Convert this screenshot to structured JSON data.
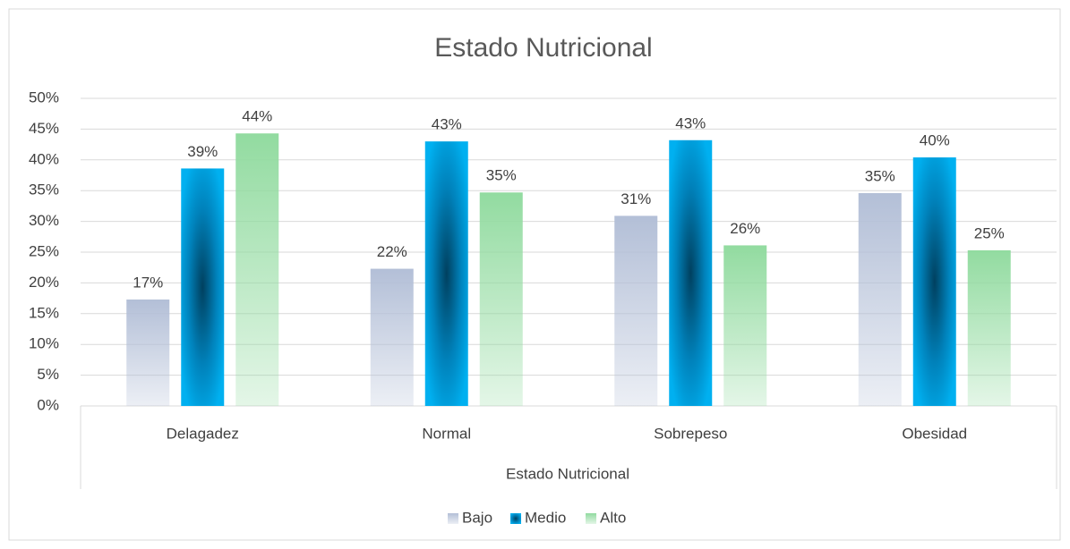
{
  "chart_data": {
    "type": "bar",
    "title": "Estado Nutricional",
    "x_label": "Estado Nutricional",
    "categories": [
      "Delagadez",
      "Normal",
      "Sobrepeso",
      "Obesidad"
    ],
    "series": [
      {
        "name": "Bajo",
        "color": "#b3bfd7",
        "values": [
          17.3,
          22.3,
          30.9,
          34.6
        ],
        "value_labels": [
          "17%",
          "22%",
          "31%",
          "35%"
        ]
      },
      {
        "name": "Medio",
        "color": "#00b0f0",
        "values": [
          38.6,
          43.0,
          43.2,
          40.4
        ],
        "value_labels": [
          "39%",
          "43%",
          "43%",
          "40%"
        ]
      },
      {
        "name": "Alto",
        "color": "#92dba0",
        "values": [
          44.3,
          34.7,
          26.1,
          25.3
        ],
        "value_labels": [
          "44%",
          "35%",
          "26%",
          "25%"
        ]
      }
    ],
    "ylim": [
      0,
      50
    ],
    "yticks": [
      {
        "value": 0,
        "label": "0%"
      },
      {
        "value": 5,
        "label": "5%"
      },
      {
        "value": 10,
        "label": "10%"
      },
      {
        "value": 15,
        "label": "15%"
      },
      {
        "value": 20,
        "label": "20%"
      },
      {
        "value": 25,
        "label": "25%"
      },
      {
        "value": 30,
        "label": "30%"
      },
      {
        "value": 35,
        "label": "35%"
      },
      {
        "value": 40,
        "label": "40%"
      },
      {
        "value": 45,
        "label": "45%"
      },
      {
        "value": 50,
        "label": "50%"
      }
    ],
    "grid": true,
    "legend": "bottom"
  }
}
